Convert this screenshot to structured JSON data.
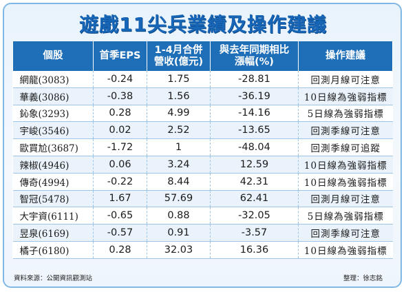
{
  "title": "遊戲11尖兵業績及操作建議",
  "headers": {
    "stock": "個股",
    "eps_line1": "首季EPS",
    "revenue_line1": "1-4月合併",
    "revenue_line2": "營收(億元)",
    "yoy_line1": "與去年同期相比",
    "yoy_line2": "漲幅(%)",
    "advice": "操作建議"
  },
  "rows": [
    {
      "stock": "網龍(3083)",
      "eps": "-0.24",
      "revenue": "1.75",
      "yoy": "-28.81",
      "advice": "回測月線可注意"
    },
    {
      "stock": "華義(3086)",
      "eps": "-0.38",
      "revenue": "1.56",
      "yoy": "-36.19",
      "advice": "10日線為強弱指標"
    },
    {
      "stock": "鈊象(3293)",
      "eps": "0.28",
      "revenue": "4.99",
      "yoy": "-14.16",
      "advice": "5日線為強弱指標"
    },
    {
      "stock": "宇峻(3546)",
      "eps": "0.02",
      "revenue": "2.52",
      "yoy": "-13.65",
      "advice": "回測季線可注意"
    },
    {
      "stock": "歐買尬(3687)",
      "eps": "-1.72",
      "revenue": "1",
      "yoy": "-48.04",
      "advice": "回測季線可追蹤"
    },
    {
      "stock": "辣椒(4946)",
      "eps": "0.06",
      "revenue": "3.24",
      "yoy": "12.59",
      "advice": "10日線為強弱指標"
    },
    {
      "stock": "傳奇(4994)",
      "eps": "-0.22",
      "revenue": "8.44",
      "yoy": "42.31",
      "advice": "10日線為強弱指標"
    },
    {
      "stock": "智冠(5478)",
      "eps": "1.67",
      "revenue": "57.69",
      "yoy": "62.41",
      "advice": "回測月線可注意"
    },
    {
      "stock": "大宇資(6111)",
      "eps": "-0.65",
      "revenue": "0.88",
      "yoy": "-32.05",
      "advice": "5日線為強弱指標"
    },
    {
      "stock": "昱泉(6169)",
      "eps": "-0.57",
      "revenue": "0.91",
      "yoy": "-3.57",
      "advice": "回測季線可注意"
    },
    {
      "stock": "橘子(6180)",
      "eps": "0.28",
      "revenue": "32.03",
      "yoy": "16.36",
      "advice": "10日線為強弱指標"
    }
  ],
  "footer": {
    "source": "資料來源：公開資訊觀測站",
    "compiler": "整理：徐志銘"
  }
}
